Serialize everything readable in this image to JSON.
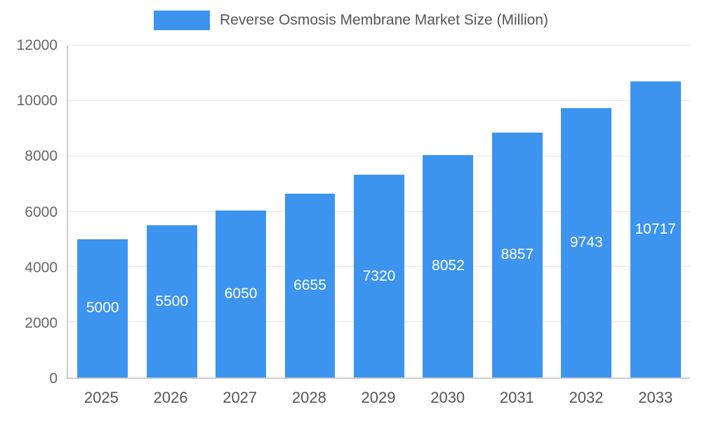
{
  "chart_data": {
    "type": "bar",
    "title": "Reverse Osmosis Membrane Market Size (Million)",
    "categories": [
      "2025",
      "2026",
      "2027",
      "2028",
      "2029",
      "2030",
      "2031",
      "2032",
      "2033"
    ],
    "values": [
      5000,
      5500,
      6050,
      6655,
      7320,
      8052,
      8857,
      9743,
      10717
    ],
    "xlabel": "",
    "ylabel": "",
    "ylim": [
      0,
      12000
    ],
    "yticks": [
      0,
      2000,
      4000,
      6000,
      8000,
      10000,
      12000
    ],
    "grid": true,
    "legend_position": "top",
    "bar_color": "#3d94ee",
    "bar_label_color": "#ffffff",
    "axis_text_color": "#666666",
    "gridline_color": "#e6e6e6",
    "axis_line_color": "#cccccc"
  },
  "legend": {
    "label": "Reverse Osmosis Membrane Market Size (Million)"
  }
}
